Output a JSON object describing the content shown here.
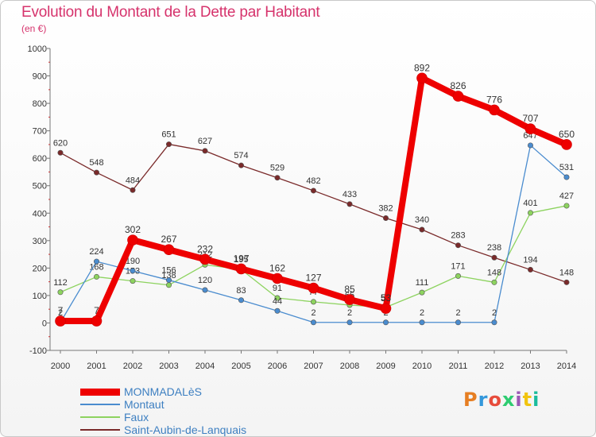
{
  "title": "Evolution du Montant de la Dette par Habitant",
  "unit": "(en €)",
  "logo": {
    "text": "Proxiti",
    "colors": [
      "#e67e22",
      "#3498db",
      "#e74c3c",
      "#2ecc71",
      "#9b59b6",
      "#f1c40f",
      "#1abc9c"
    ]
  },
  "chart_data": {
    "type": "line",
    "x": [
      "2000",
      "2001",
      "2002",
      "2003",
      "2004",
      "2005",
      "2006",
      "2007",
      "2008",
      "2009",
      "2010",
      "2011",
      "2012",
      "2013",
      "2014"
    ],
    "ylim": [
      -100,
      1000
    ],
    "yticks": [
      -100,
      0,
      100,
      200,
      300,
      400,
      500,
      600,
      700,
      800,
      900,
      1000
    ],
    "grid": false,
    "legend_position": "bottom-left",
    "series": [
      {
        "name": "Saint-Aubin-de-Lanquais",
        "color": "#7a2a2a",
        "values": [
          620,
          548,
          484,
          651,
          627,
          574,
          529,
          482,
          433,
          382,
          340,
          283,
          238,
          194,
          148
        ]
      },
      {
        "name": "Faux",
        "color": "#8dd35f",
        "values": [
          112,
          168,
          153,
          138,
          212,
          195,
          91,
          77,
          65,
          57,
          111,
          171,
          148,
          401,
          427
        ]
      },
      {
        "name": "Montaut",
        "color": "#4a8ccf",
        "values": [
          2,
          224,
          190,
          156,
          120,
          83,
          44,
          2,
          2,
          2,
          2,
          2,
          2,
          647,
          531
        ]
      },
      {
        "name": "MONMADALèS",
        "color": "#ee0000",
        "values": [
          7,
          7,
          302,
          267,
          232,
          197,
          162,
          127,
          85,
          53,
          892,
          826,
          776,
          707,
          650
        ]
      }
    ],
    "legend": [
      "MONMADALèS",
      "Montaut",
      "Faux",
      "Saint-Aubin-de-Lanquais"
    ]
  }
}
